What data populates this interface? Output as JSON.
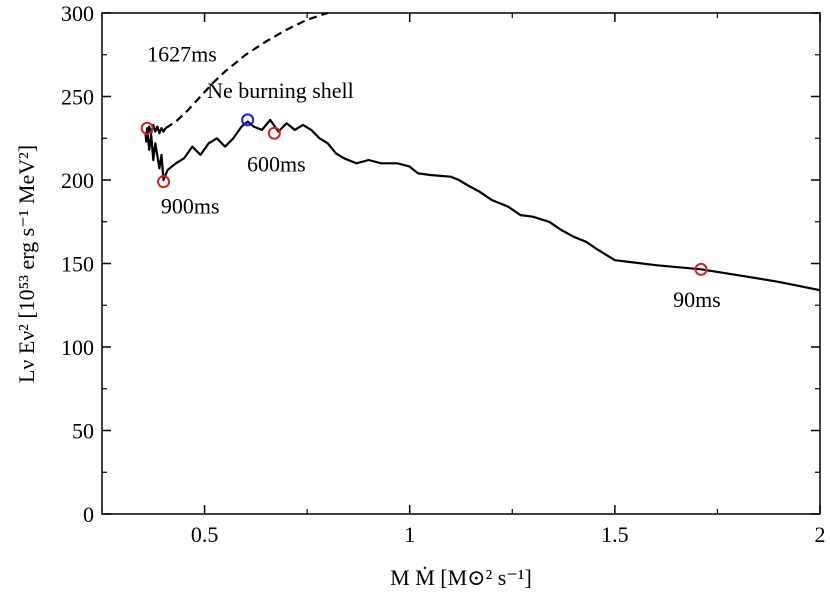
{
  "chart_data": {
    "type": "line",
    "title": "",
    "xlabel": "M Ṁ [M⊙² s⁻¹]",
    "ylabel": "Lν Eν² [10⁵³ erg s⁻¹ MeV²]",
    "xlim": [
      0.25,
      2.0
    ],
    "ylim": [
      0,
      300
    ],
    "xticks": [
      0.5,
      1,
      1.5,
      2
    ],
    "xtick_labels": [
      "0.5",
      "1",
      "1.5",
      "2"
    ],
    "yticks": [
      0,
      50,
      100,
      150,
      200,
      250,
      300
    ],
    "ytick_labels": [
      "0",
      "50",
      "100",
      "150",
      "200",
      "250",
      "300"
    ],
    "grid": false,
    "series": [
      {
        "name": "solid",
        "style": "solid",
        "color": "#000000",
        "points": [
          [
            2.0,
            134
          ],
          [
            1.9,
            139
          ],
          [
            1.8,
            143
          ],
          [
            1.71,
            146.5
          ],
          [
            1.6,
            149
          ],
          [
            1.5,
            152
          ],
          [
            1.46,
            158
          ],
          [
            1.43,
            163
          ],
          [
            1.4,
            166
          ],
          [
            1.37,
            170
          ],
          [
            1.34,
            175
          ],
          [
            1.3,
            178
          ],
          [
            1.27,
            179
          ],
          [
            1.24,
            184
          ],
          [
            1.2,
            188
          ],
          [
            1.17,
            193
          ],
          [
            1.14,
            197
          ],
          [
            1.12,
            200
          ],
          [
            1.1,
            202
          ],
          [
            1.05,
            203
          ],
          [
            1.02,
            204
          ],
          [
            1.0,
            208
          ],
          [
            0.97,
            210
          ],
          [
            0.93,
            210
          ],
          [
            0.9,
            212
          ],
          [
            0.87,
            210
          ],
          [
            0.84,
            213
          ],
          [
            0.82,
            216
          ],
          [
            0.8,
            222
          ],
          [
            0.78,
            225
          ],
          [
            0.76,
            230
          ],
          [
            0.74,
            233
          ],
          [
            0.72,
            230
          ],
          [
            0.7,
            234
          ],
          [
            0.68,
            229
          ],
          [
            0.66,
            236
          ],
          [
            0.64,
            230
          ],
          [
            0.62,
            232
          ],
          [
            0.605,
            235
          ],
          [
            0.59,
            232
          ],
          [
            0.57,
            225
          ],
          [
            0.55,
            220
          ],
          [
            0.53,
            225
          ],
          [
            0.51,
            222
          ],
          [
            0.49,
            215
          ],
          [
            0.47,
            220
          ],
          [
            0.45,
            213
          ],
          [
            0.43,
            210
          ],
          [
            0.41,
            206
          ],
          [
            0.4,
            200
          ],
          [
            0.395,
            215
          ],
          [
            0.39,
            207
          ],
          [
            0.38,
            222
          ],
          [
            0.375,
            212
          ],
          [
            0.37,
            227
          ],
          [
            0.365,
            218
          ],
          [
            0.36,
            231
          ],
          [
            0.358,
            223
          ],
          [
            0.356,
            228
          ],
          [
            0.36,
            225
          ],
          [
            0.365,
            232
          ],
          [
            0.37,
            228
          ],
          [
            0.375,
            233
          ],
          [
            0.38,
            229
          ],
          [
            0.385,
            232
          ],
          [
            0.39,
            228
          ],
          [
            0.395,
            231
          ],
          [
            0.4,
            229
          ],
          [
            0.405,
            231
          ]
        ]
      },
      {
        "name": "dashed",
        "style": "dashed",
        "color": "#000000",
        "points": [
          [
            0.405,
            231
          ],
          [
            0.43,
            235
          ],
          [
            0.46,
            242
          ],
          [
            0.49,
            250
          ],
          [
            0.52,
            258
          ],
          [
            0.55,
            265
          ],
          [
            0.6,
            275
          ],
          [
            0.65,
            283
          ],
          [
            0.7,
            290
          ],
          [
            0.75,
            296
          ],
          [
            0.8,
            300
          ]
        ]
      }
    ],
    "markers": [
      {
        "x": 0.36,
        "y": 231,
        "color": "#d62020"
      },
      {
        "x": 0.4,
        "y": 199,
        "color": "#d62020"
      },
      {
        "x": 0.605,
        "y": 236,
        "color": "#2020d6"
      },
      {
        "x": 0.67,
        "y": 228,
        "color": "#d62020"
      },
      {
        "x": 1.71,
        "y": 146.5,
        "color": "#d62020"
      }
    ],
    "annotations": [
      {
        "text": "1627ms",
        "x": 0.445,
        "y": 271
      },
      {
        "text": "Ne burning shell",
        "x": 0.685,
        "y": 249
      },
      {
        "text": "600ms",
        "x": 0.675,
        "y": 205
      },
      {
        "text": "900ms",
        "x": 0.465,
        "y": 180
      },
      {
        "text": "90ms",
        "x": 1.7,
        "y": 124
      }
    ]
  }
}
